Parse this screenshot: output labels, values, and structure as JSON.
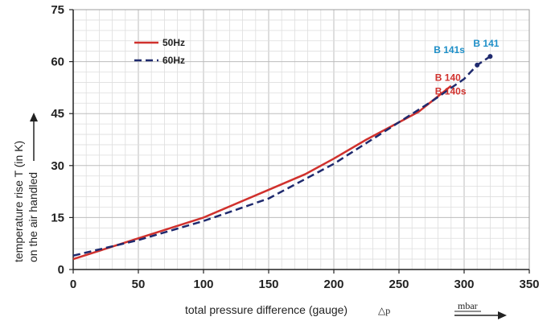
{
  "chart_data": {
    "type": "line",
    "xlabel": "total pressure difference (gauge)",
    "xlabel_symbol": "△p",
    "xunit": "mbar",
    "ylabel_line1": "temperature rise T (in K)",
    "ylabel_line2": "on the air handled",
    "xlim": [
      0,
      350
    ],
    "ylim": [
      0,
      75
    ],
    "xticks": [
      0,
      50,
      100,
      150,
      200,
      250,
      300,
      350
    ],
    "yticks": [
      0,
      15,
      30,
      45,
      60,
      75
    ],
    "grid": true,
    "legend_position": "top-left",
    "series": [
      {
        "name": "50Hz",
        "color": "#d0312d",
        "style": "solid",
        "x": [
          0,
          50,
          100,
          150,
          178,
          200,
          225,
          250,
          265,
          290
        ],
        "y": [
          3,
          9,
          15,
          23,
          27.5,
          32,
          37.5,
          42.5,
          45.5,
          53
        ]
      },
      {
        "name": "60Hz",
        "color": "#1f2a6e",
        "style": "dashed",
        "x": [
          0,
          50,
          100,
          150,
          175,
          200,
          225,
          250,
          275,
          300,
          310,
          320
        ],
        "y": [
          4,
          8.5,
          14,
          20.5,
          25.5,
          30.5,
          36.5,
          42.5,
          48.5,
          55,
          59,
          61.5
        ]
      }
    ],
    "annotations": [
      {
        "text": "B 141",
        "x": 320,
        "y": 61.5,
        "color": "#1e8fc8"
      },
      {
        "text": "B 141s",
        "x": 310,
        "y": 59,
        "color": "#1e8fc8"
      },
      {
        "text": "B 140",
        "x": 290,
        "y": 53,
        "color": "#d0312d"
      },
      {
        "text": "B 140s",
        "x": 290,
        "y": 53,
        "color": "#d0312d"
      }
    ]
  }
}
